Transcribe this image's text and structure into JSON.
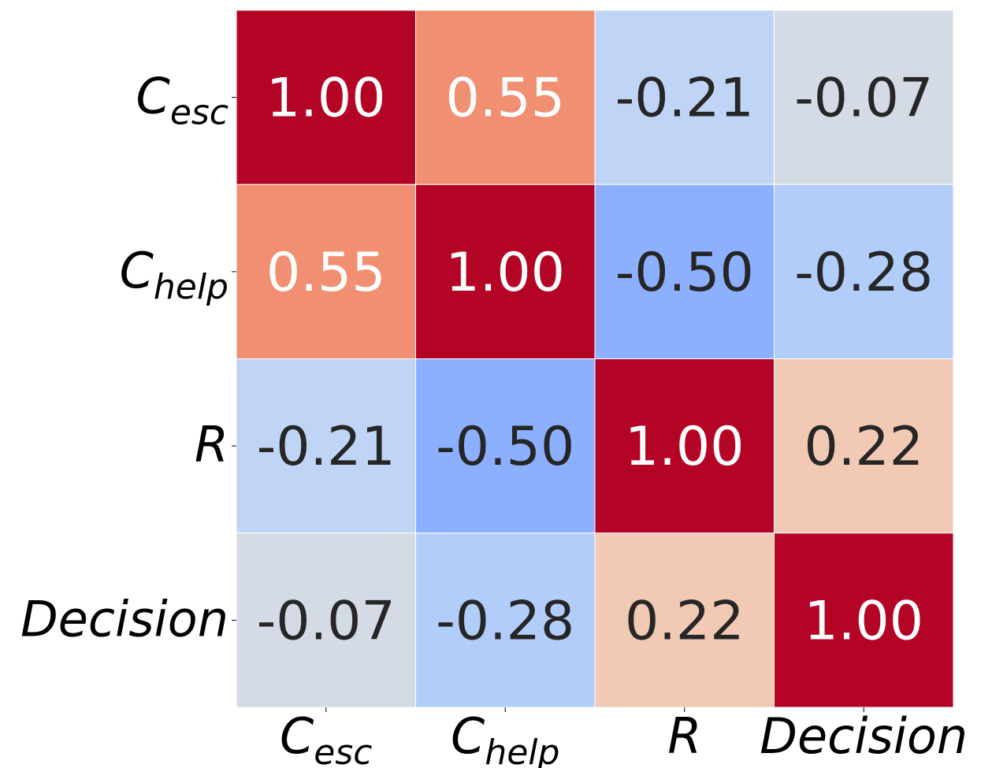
{
  "chart_data": {
    "type": "heatmap",
    "title": "",
    "xlabel": "",
    "ylabel": "",
    "colormap": "coolwarm",
    "value_range": [
      -1,
      1
    ],
    "grid": false,
    "legend": "none",
    "x_labels": [
      {
        "base": "C",
        "sub": "esc"
      },
      {
        "base": "C",
        "sub": "help"
      },
      {
        "base": "R",
        "sub": ""
      },
      {
        "base": "Decision",
        "sub": ""
      }
    ],
    "y_labels": [
      {
        "base": "C",
        "sub": "esc"
      },
      {
        "base": "C",
        "sub": "help"
      },
      {
        "base": "R",
        "sub": ""
      },
      {
        "base": "Decision",
        "sub": ""
      }
    ],
    "values": [
      [
        1.0,
        0.55,
        -0.21,
        -0.07
      ],
      [
        0.55,
        1.0,
        -0.5,
        -0.28
      ],
      [
        -0.21,
        -0.5,
        1.0,
        0.22
      ],
      [
        -0.07,
        -0.28,
        0.22,
        1.0
      ]
    ],
    "value_format": "0.00",
    "colors": {
      "1.00": "#b40426",
      "0.55": "#f08f71",
      "0.22": "#f2c9b4",
      "-0.07": "#d5dbe5",
      "-0.21": "#c0d4f5",
      "-0.28": "#b3cdfb",
      "-0.50": "#8db0fe"
    },
    "text_colors": {
      "light": "#ffffff",
      "dark": "#262626"
    }
  }
}
